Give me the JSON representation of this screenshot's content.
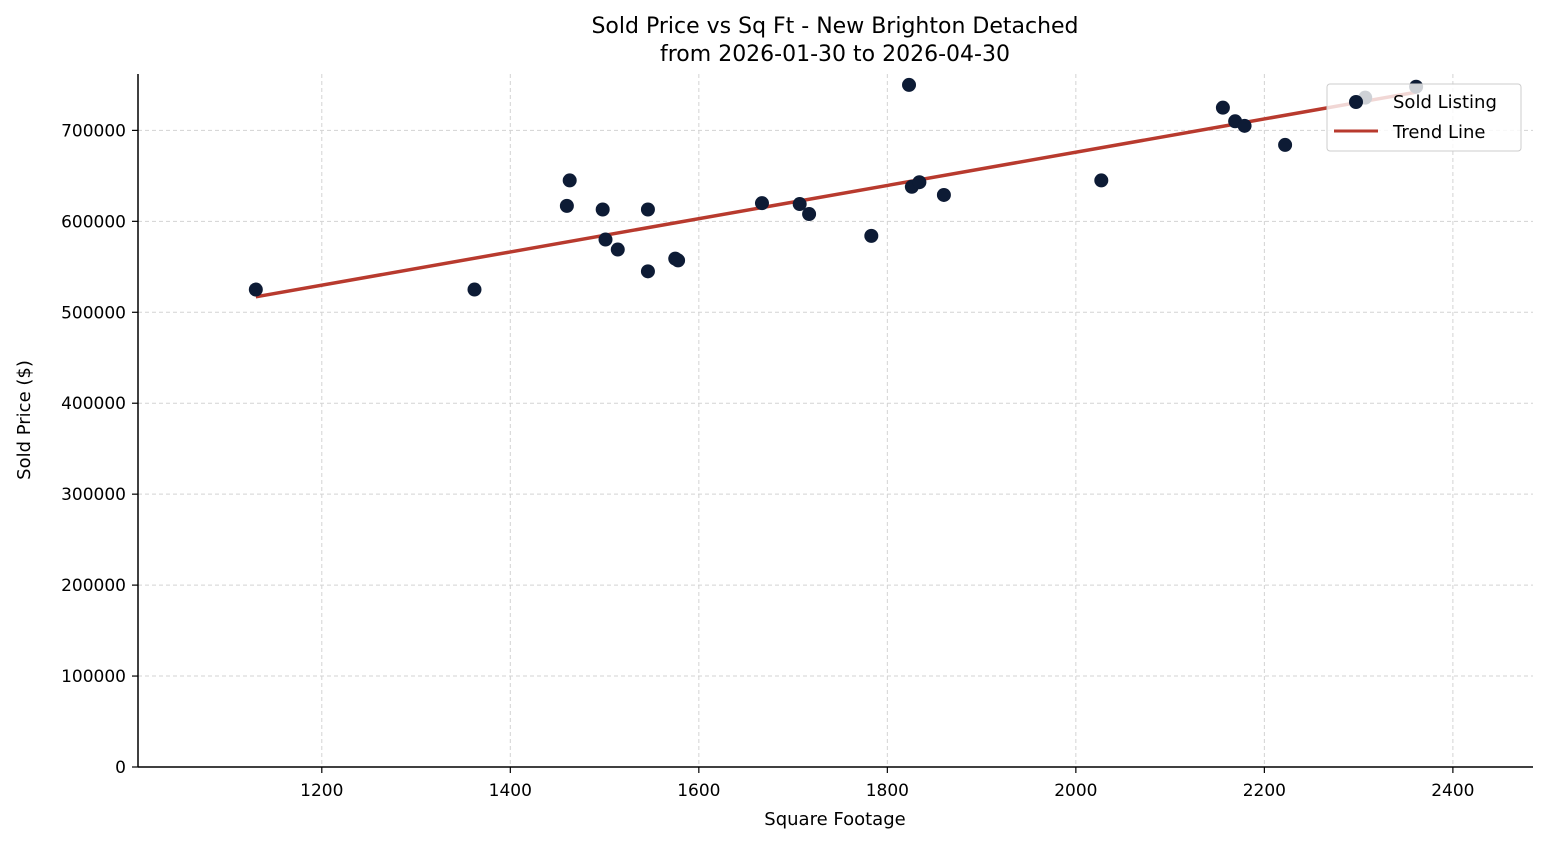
{
  "chart_data": {
    "type": "scatter",
    "title": "Sold Price vs Sq Ft - New Brighton Detached",
    "subtitle": "from 2026-01-30 to 2026-04-30",
    "xlabel": "Square Footage",
    "ylabel": "Sold Price ($)",
    "xlim": [
      1005,
      2485
    ],
    "ylim": [
      0,
      762000
    ],
    "x_ticks": [
      1200,
      1400,
      1600,
      1800,
      2000,
      2200,
      2400
    ],
    "y_ticks": [
      0,
      100000,
      200000,
      300000,
      400000,
      500000,
      600000,
      700000
    ],
    "grid": true,
    "legend_position": "top-right",
    "colors": {
      "points": "#0d1b35",
      "trend": "#b83a2e"
    },
    "series": [
      {
        "name": "Sold Listing",
        "kind": "scatter",
        "points": [
          [
            1130,
            525000
          ],
          [
            1362,
            525000
          ],
          [
            1460,
            617000
          ],
          [
            1463,
            645000
          ],
          [
            1498,
            613000
          ],
          [
            1501,
            580000
          ],
          [
            1514,
            569000
          ],
          [
            1546,
            545000
          ],
          [
            1546,
            613000
          ],
          [
            1575,
            559000
          ],
          [
            1578,
            557000
          ],
          [
            1667,
            620000
          ],
          [
            1707,
            619000
          ],
          [
            1717,
            608000
          ],
          [
            1783,
            584000
          ],
          [
            1823,
            750000
          ],
          [
            1826,
            638000
          ],
          [
            1834,
            643000
          ],
          [
            1860,
            629000
          ],
          [
            2027,
            645000
          ],
          [
            2156,
            725000
          ],
          [
            2169,
            710000
          ],
          [
            2179,
            705000
          ],
          [
            2222,
            684000
          ],
          [
            2307,
            736000
          ],
          [
            2361,
            748000
          ]
        ]
      },
      {
        "name": "Trend Line",
        "kind": "line",
        "points": [
          [
            1130,
            517000
          ],
          [
            2361,
            742000
          ]
        ]
      }
    ]
  }
}
